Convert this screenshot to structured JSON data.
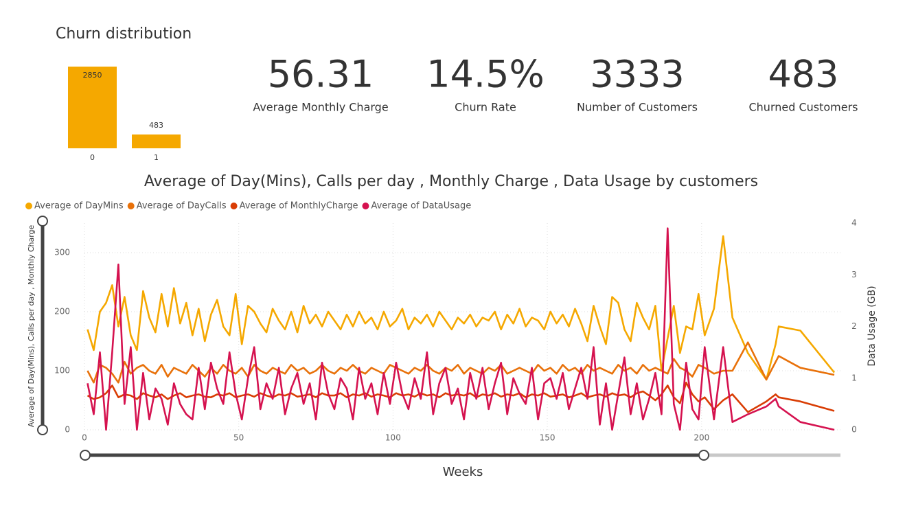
{
  "chart_data": [
    {
      "type": "bar",
      "title": "Churn distribution",
      "categories": [
        "0",
        "1"
      ],
      "values": [
        2850,
        483
      ],
      "color": "#F5A800",
      "ylim": [
        0,
        2850
      ]
    },
    {
      "type": "line",
      "title": "Average of Day(Mins), Calls per day , Monthly Charge , Data Usage by customers",
      "x_label": "Weeks",
      "y_label": "Average of Day(Mins), Calls per day , Monthly Charge",
      "y2_label": "Data Usage (GB)",
      "xlim": [
        0,
        245
      ],
      "xticks": [
        0,
        50,
        100,
        150,
        200
      ],
      "ylim": [
        0,
        350
      ],
      "yticks": [
        0,
        100,
        200,
        300
      ],
      "y2lim": [
        0,
        4
      ],
      "y2ticks": [
        0,
        1,
        2,
        3,
        4
      ],
      "grid": true,
      "x": [
        1,
        3,
        5,
        7,
        9,
        11,
        13,
        15,
        17,
        19,
        21,
        23,
        25,
        27,
        29,
        31,
        33,
        35,
        37,
        39,
        41,
        43,
        45,
        47,
        49,
        51,
        53,
        55,
        57,
        59,
        61,
        63,
        65,
        67,
        69,
        71,
        73,
        75,
        77,
        79,
        81,
        83,
        85,
        87,
        89,
        91,
        93,
        95,
        97,
        99,
        101,
        103,
        105,
        107,
        109,
        111,
        113,
        115,
        117,
        119,
        121,
        123,
        125,
        127,
        129,
        131,
        133,
        135,
        137,
        139,
        141,
        143,
        145,
        147,
        149,
        151,
        153,
        155,
        157,
        159,
        161,
        163,
        165,
        167,
        169,
        171,
        173,
        175,
        177,
        179,
        181,
        183,
        185,
        187,
        189,
        191,
        193,
        195,
        197,
        199,
        201,
        204,
        207,
        210,
        215,
        221,
        224,
        225,
        232,
        243
      ],
      "series": [
        {
          "name": "Average of DayMins",
          "color": "#F5A800",
          "values": [
            170,
            135,
            200,
            215,
            245,
            175,
            225,
            160,
            135,
            235,
            190,
            165,
            230,
            175,
            240,
            180,
            215,
            160,
            205,
            150,
            195,
            220,
            175,
            160,
            230,
            145,
            210,
            200,
            180,
            165,
            205,
            185,
            170,
            200,
            165,
            210,
            180,
            195,
            175,
            200,
            185,
            170,
            195,
            175,
            200,
            180,
            190,
            170,
            200,
            175,
            185,
            205,
            170,
            190,
            180,
            195,
            175,
            200,
            185,
            170,
            190,
            180,
            195,
            175,
            190,
            185,
            200,
            170,
            195,
            180,
            205,
            175,
            190,
            185,
            170,
            200,
            180,
            195,
            175,
            205,
            180,
            150,
            210,
            175,
            145,
            225,
            215,
            170,
            150,
            215,
            190,
            170,
            210,
            100,
            155,
            210,
            130,
            175,
            170,
            230,
            160,
            205,
            328,
            190,
            130,
            85,
            145,
            175,
            168,
            97
          ]
        },
        {
          "name": "Average of DayCalls",
          "color": "#E8710A",
          "values": [
            100,
            80,
            110,
            105,
            95,
            80,
            115,
            95,
            105,
            110,
            100,
            95,
            110,
            90,
            105,
            100,
            95,
            110,
            100,
            90,
            105,
            95,
            110,
            100,
            95,
            105,
            90,
            110,
            100,
            95,
            105,
            100,
            95,
            110,
            100,
            105,
            95,
            100,
            110,
            100,
            95,
            105,
            100,
            110,
            100,
            95,
            105,
            100,
            95,
            110,
            105,
            100,
            95,
            105,
            100,
            110,
            100,
            95,
            105,
            100,
            110,
            95,
            105,
            100,
            95,
            105,
            100,
            110,
            95,
            100,
            105,
            100,
            95,
            110,
            100,
            105,
            95,
            110,
            100,
            105,
            95,
            110,
            100,
            105,
            100,
            95,
            110,
            100,
            105,
            95,
            110,
            100,
            105,
            100,
            95,
            120,
            105,
            100,
            90,
            110,
            105,
            95,
            100,
            100,
            148,
            85,
            115,
            125,
            105,
            93
          ]
        },
        {
          "name": "Average of MonthlyCharge",
          "color": "#D93D04",
          "values": [
            58,
            52,
            55,
            62,
            75,
            55,
            60,
            58,
            52,
            62,
            58,
            55,
            60,
            52,
            58,
            62,
            55,
            58,
            60,
            56,
            55,
            60,
            58,
            62,
            55,
            58,
            60,
            56,
            62,
            58,
            55,
            60,
            58,
            62,
            56,
            58,
            60,
            55,
            62,
            58,
            58,
            62,
            55,
            60,
            58,
            62,
            56,
            60,
            58,
            55,
            62,
            58,
            60,
            56,
            62,
            58,
            60,
            55,
            62,
            58,
            60,
            58,
            62,
            55,
            60,
            58,
            62,
            56,
            60,
            58,
            62,
            55,
            60,
            58,
            62,
            56,
            58,
            60,
            55,
            58,
            62,
            55,
            58,
            60,
            56,
            62,
            58,
            60,
            55,
            62,
            65,
            58,
            50,
            60,
            75,
            55,
            45,
            80,
            60,
            48,
            55,
            35,
            50,
            60,
            30,
            48,
            60,
            55,
            48,
            32
          ]
        },
        {
          "name": "Average of DataUsage",
          "color": "#D5124F",
          "axis": "y2",
          "values": [
            0.9,
            0.3,
            1.5,
            0,
            1.5,
            3.2,
            0.5,
            1.6,
            0,
            1.1,
            0.2,
            0.8,
            0.6,
            0.1,
            0.9,
            0.5,
            0.3,
            0.2,
            1.2,
            0.4,
            1.3,
            0.8,
            0.5,
            1.5,
            0.7,
            0.2,
            1.0,
            1.6,
            0.4,
            0.9,
            0.6,
            1.2,
            0.3,
            0.8,
            1.1,
            0.5,
            0.9,
            0.2,
            1.3,
            0.7,
            0.4,
            1.0,
            0.8,
            0.2,
            1.2,
            0.6,
            0.9,
            0.3,
            1.1,
            0.5,
            1.3,
            0.7,
            0.4,
            1.0,
            0.6,
            1.5,
            0.3,
            0.9,
            1.2,
            0.5,
            0.8,
            0.2,
            1.1,
            0.6,
            1.2,
            0.4,
            0.9,
            1.3,
            0.3,
            1.0,
            0.7,
            0.5,
            1.2,
            0.2,
            0.9,
            1.0,
            0.6,
            1.1,
            0.4,
            0.8,
            1.2,
            0.6,
            1.6,
            0.1,
            0.9,
            0.0,
            0.7,
            1.4,
            0.3,
            0.9,
            0.2,
            0.6,
            1.1,
            0.3,
            3.9,
            0.5,
            0.0,
            1.3,
            0.4,
            0.2,
            1.6,
            0.2,
            1.6,
            0.15,
            0.3,
            0.45,
            0.6,
            0.45,
            0.15,
            0.0
          ]
        }
      ]
    }
  ],
  "cards": [
    {
      "value": "56.31",
      "label": "Average Monthly Charge"
    },
    {
      "value": "14.5%",
      "label": "Churn Rate"
    },
    {
      "value": "3333",
      "label": "Number of Customers"
    },
    {
      "value": "483",
      "label": "Churned Customers"
    }
  ]
}
